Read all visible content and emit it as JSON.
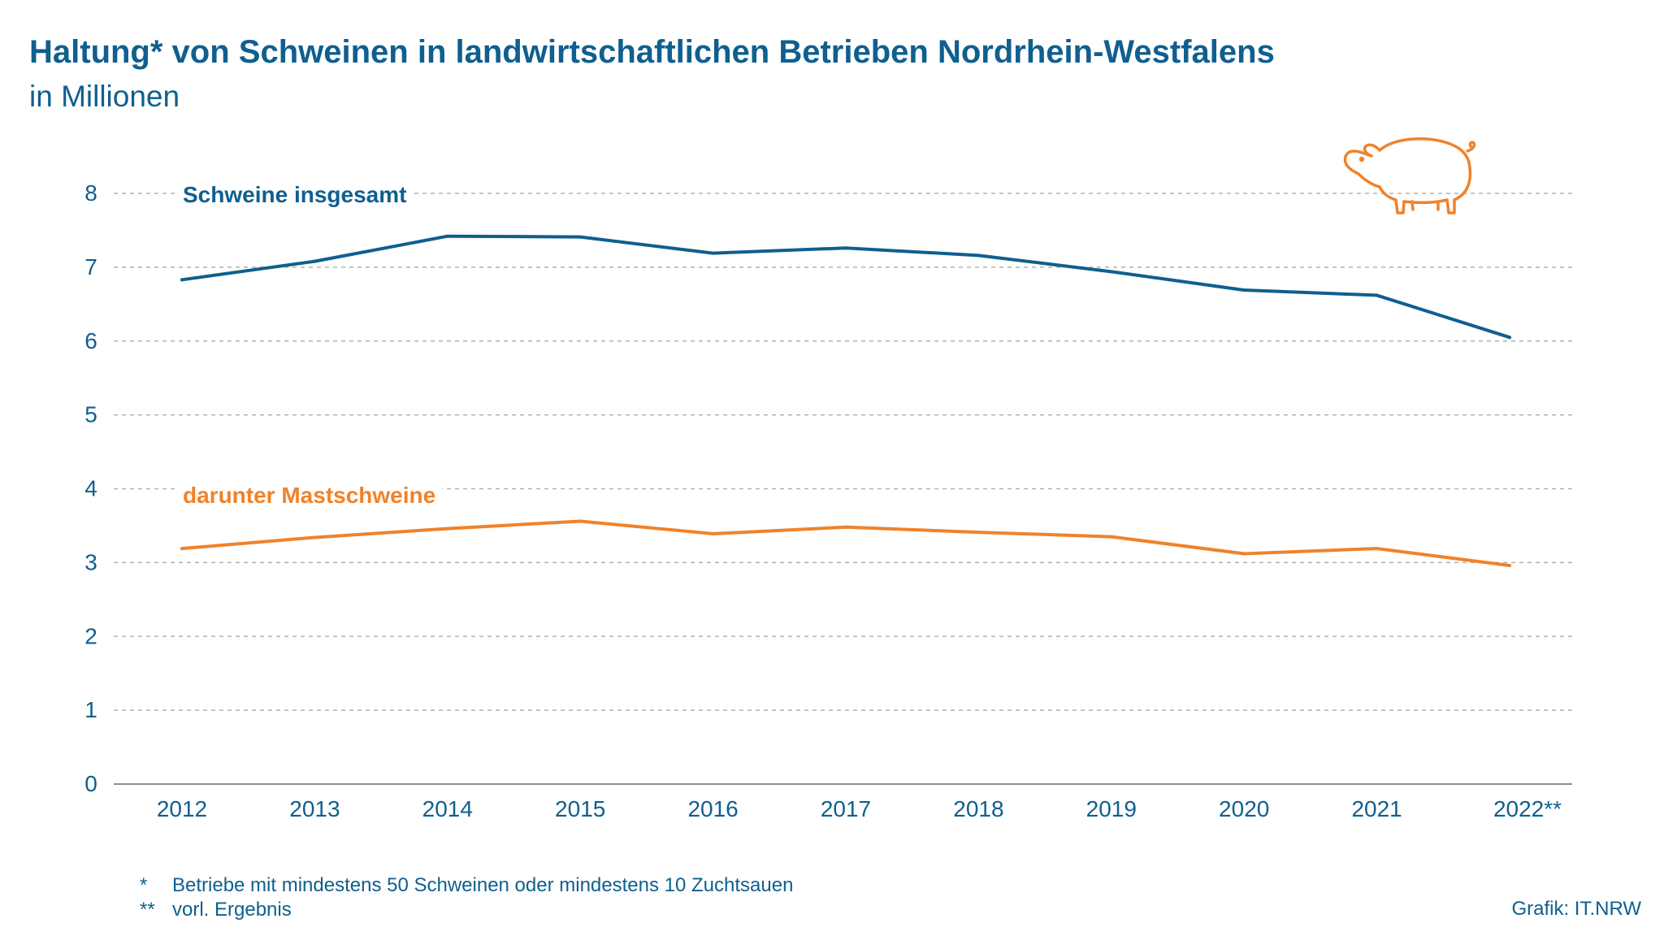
{
  "title": "Haltung* von Schweinen in landwirtschaftlichen Betrieben Nordrhein-Westfalens",
  "subtitle": "in Millionen",
  "footnotes": [
    {
      "mark": "*",
      "text": "Betriebe mit mindestens 50 Schweinen oder mindestens 10 Zuchtsauen"
    },
    {
      "mark": "**",
      "text": "vorl. Ergebnis"
    }
  ],
  "credit": "Grafik: IT.NRW",
  "icon": "pig-icon",
  "colors": {
    "total": "#0f5f8f",
    "fattening": "#f0822a",
    "grid": "#b0b0b0",
    "text": "#0f5f8f",
    "icon": "#f0822a"
  },
  "chart_data": {
    "type": "line",
    "categories": [
      "2012",
      "2013",
      "2014",
      "2015",
      "2016",
      "2017",
      "2018",
      "2019",
      "2020",
      "2021",
      "2022**"
    ],
    "ylim": [
      0,
      8
    ],
    "yticks": [
      "0",
      "1",
      "2",
      "3",
      "4",
      "5",
      "6",
      "7",
      "8"
    ],
    "grid": true,
    "series": [
      {
        "name": "Schweine insgesamt",
        "values": [
          6.83,
          7.08,
          7.42,
          7.41,
          7.19,
          7.26,
          7.16,
          6.94,
          6.69,
          6.62,
          6.05
        ]
      },
      {
        "name": "darunter Mastschweine",
        "values": [
          3.19,
          3.34,
          3.46,
          3.56,
          3.39,
          3.48,
          3.41,
          3.35,
          3.12,
          3.19,
          2.96
        ]
      }
    ]
  }
}
